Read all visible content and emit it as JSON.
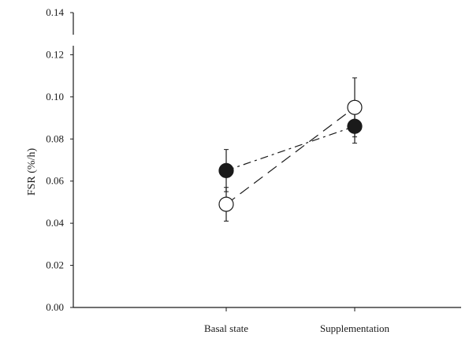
{
  "chart_data": {
    "type": "line",
    "title": "",
    "xlabel": "",
    "ylabel": "FSR (%/h)",
    "categories": [
      "Basal state",
      "Supplementation"
    ],
    "ylim": [
      0,
      0.14
    ],
    "yticks": [
      "0.00",
      "0.02",
      "0.04",
      "0.06",
      "0.08",
      "0.10",
      "0.12",
      "0.14"
    ],
    "grid": false,
    "legend": "none",
    "series": [
      {
        "marker": "filled-circle",
        "line_style": "dash",
        "color": "#1a1a1a",
        "values": [
          0.065,
          0.086
        ],
        "error": [
          0.01,
          0.008
        ]
      },
      {
        "marker": "open-circle",
        "line_style": "long-dash",
        "color": "#1a1a1a",
        "values": [
          0.049,
          0.095
        ],
        "error": [
          0.008,
          0.014
        ]
      }
    ]
  }
}
